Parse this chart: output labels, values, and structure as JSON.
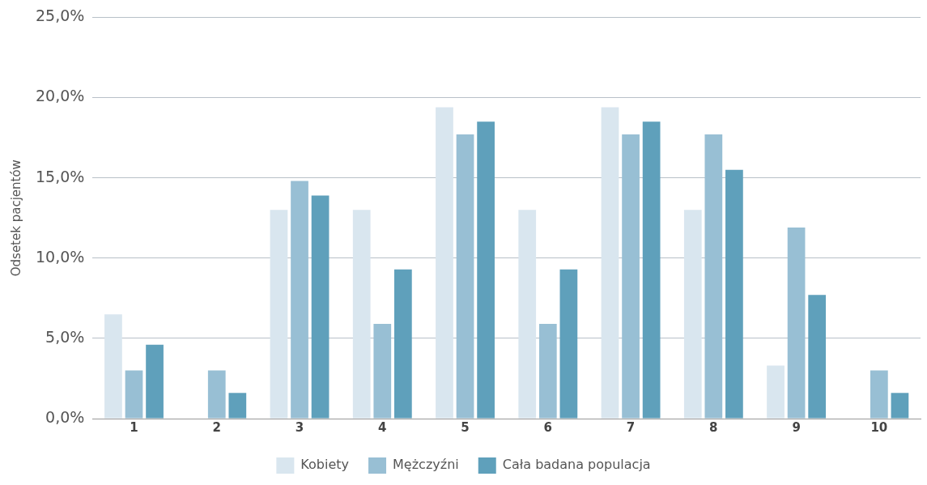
{
  "chart_data": {
    "type": "bar",
    "ylabel": "Odsetek pacjentów",
    "categories": [
      "1",
      "2",
      "3",
      "4",
      "5",
      "6",
      "7",
      "8",
      "9",
      "10"
    ],
    "series": [
      {
        "name": "Kobiety",
        "color": "#d9e6ef",
        "values": [
          6.5,
          0,
          13.0,
          13.0,
          19.4,
          13.0,
          19.4,
          13.0,
          3.3,
          0
        ]
      },
      {
        "name": "Mężczyźni",
        "color": "#98bfd4",
        "values": [
          3.0,
          3.0,
          14.8,
          5.9,
          17.7,
          5.9,
          17.7,
          17.7,
          11.9,
          3.0
        ]
      },
      {
        "name": "Cała badana populacja",
        "color": "#5fa0bb",
        "values": [
          4.6,
          1.6,
          13.9,
          9.3,
          18.5,
          9.3,
          18.5,
          15.5,
          7.7,
          1.6
        ]
      }
    ],
    "ylim": [
      0,
      25
    ],
    "yticks": [
      {
        "value": 0,
        "label": "0,0%"
      },
      {
        "value": 5,
        "label": "5,0%"
      },
      {
        "value": 10,
        "label": "10,0%"
      },
      {
        "value": 15,
        "label": "15,0%"
      },
      {
        "value": 20,
        "label": "20,0%"
      },
      {
        "value": 25,
        "label": "25,0%"
      }
    ],
    "grid": "y",
    "legend": "bottom"
  }
}
